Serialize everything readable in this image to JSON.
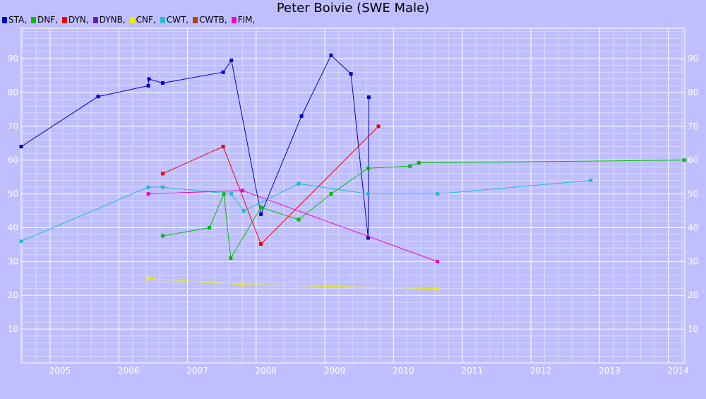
{
  "chart_data": {
    "type": "line",
    "title": "Peter Boivie (SWE Male)",
    "xlabel": "",
    "ylabel": "",
    "x_ticks": [
      "2005",
      "2006",
      "2007",
      "2008",
      "2009",
      "2010",
      "2011",
      "2012",
      "2013",
      "2014"
    ],
    "y_ticks": [
      "10",
      "20",
      "30",
      "40",
      "50",
      "60",
      "70",
      "80",
      "90"
    ],
    "xlim": [
      2004.58,
      2014.24
    ],
    "ylim": [
      0,
      99
    ],
    "grid": true,
    "legend_placement": "top-left",
    "legend": [
      {
        "label": "STA,",
        "color": "#0000cc"
      },
      {
        "label": "DNF,",
        "color": "#00bb00"
      },
      {
        "label": "DYN,",
        "color": "#ee0000"
      },
      {
        "label": "DYNB,",
        "color": "#7711cc"
      },
      {
        "label": "CNF,",
        "color": "#eeee00"
      },
      {
        "label": "CWT,",
        "color": "#22bbcc"
      },
      {
        "label": "CWTB,",
        "color": "#aa4400"
      },
      {
        "label": "FIM,",
        "color": "#ee00cc"
      }
    ],
    "series": [
      {
        "name": "STA",
        "color": "#0000cc",
        "points": [
          [
            2004.58,
            64
          ],
          [
            2005.7,
            78.8
          ],
          [
            2006.43,
            82
          ],
          [
            2006.44,
            84
          ],
          [
            2006.64,
            82.8
          ],
          [
            2007.52,
            86
          ],
          [
            2007.64,
            89.5
          ],
          [
            2008.07,
            44
          ],
          [
            2008.66,
            73
          ],
          [
            2009.09,
            91
          ],
          [
            2009.38,
            85.5
          ],
          [
            2009.63,
            37
          ],
          [
            2009.64,
            78.6
          ]
        ]
      },
      {
        "name": "DNF",
        "color": "#00bb00",
        "points": [
          [
            2006.64,
            37.6
          ],
          [
            2007.32,
            40
          ],
          [
            2007.53,
            50
          ],
          [
            2007.63,
            31
          ],
          [
            2008.07,
            46
          ],
          [
            2008.62,
            42.4
          ],
          [
            2009.09,
            50
          ],
          [
            2009.63,
            57.6
          ],
          [
            2010.24,
            58.2
          ],
          [
            2010.37,
            59.2
          ],
          [
            2014.23,
            60
          ]
        ]
      },
      {
        "name": "DYN",
        "color": "#ee0000",
        "points": [
          [
            2006.64,
            56
          ],
          [
            2007.52,
            64
          ],
          [
            2008.07,
            35.2
          ],
          [
            2009.78,
            70
          ]
        ]
      },
      {
        "name": "CNF",
        "color": "#eeee00",
        "points": [
          [
            2006.43,
            25
          ],
          [
            2007.8,
            23.2
          ],
          [
            2010.64,
            22
          ]
        ]
      },
      {
        "name": "CWT",
        "color": "#22bbcc",
        "points": [
          [
            2004.58,
            36
          ],
          [
            2006.43,
            52
          ],
          [
            2006.64,
            52
          ],
          [
            2007.64,
            50
          ],
          [
            2007.82,
            45
          ],
          [
            2008.62,
            53
          ],
          [
            2009.63,
            50
          ],
          [
            2010.64,
            50
          ],
          [
            2012.87,
            54
          ]
        ]
      },
      {
        "name": "FIM",
        "color": "#ee00cc",
        "points": [
          [
            2006.43,
            50
          ],
          [
            2007.8,
            51
          ],
          [
            2010.64,
            30
          ]
        ]
      }
    ]
  }
}
